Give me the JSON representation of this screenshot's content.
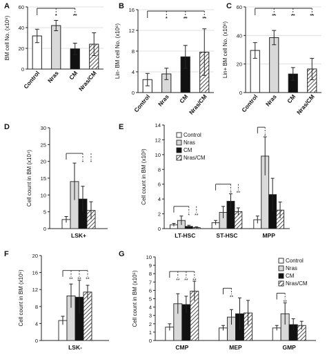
{
  "colors": {
    "control": "#ffffff",
    "nras": "#d9d9d9",
    "cm": "#111111",
    "nras_cm": "hatch",
    "stroke": "#222222",
    "grid": "#d9d9d9"
  },
  "legend": {
    "entries": [
      "Control",
      "Nras",
      "CM",
      "Nras/CM"
    ]
  },
  "chart_data": [
    {
      "panel": "A",
      "type": "bar",
      "ylabel": "BM cell No. (x10⁶)",
      "ylim": [
        0,
        60
      ],
      "yticks": [
        "0",
        "20",
        "40",
        "60"
      ],
      "grid": true,
      "categories": [
        "Control",
        "Nras",
        "CM",
        "Nras/CM"
      ],
      "values": [
        32,
        42,
        19.5,
        24
      ],
      "errors": [
        6.5,
        5,
        5.5,
        11
      ],
      "x_tick_labels_rotated": true,
      "significance": [
        {
          "pairs": "Control-Nras",
          "label": "*"
        },
        {
          "pairs": "Control-CM",
          "label": "**"
        }
      ]
    },
    {
      "panel": "B",
      "type": "bar",
      "ylabel": "Lin- BM cell No. (x10⁶)",
      "ylim": [
        0,
        16
      ],
      "yticks": [
        "0",
        "4",
        "8",
        "12",
        "16"
      ],
      "grid": true,
      "categories": [
        "Control",
        "Nras",
        "CM",
        "Nras/CM"
      ],
      "values": [
        2.5,
        3.6,
        6.9,
        7.8
      ],
      "errors": [
        1.2,
        1.1,
        2.2,
        4.5
      ],
      "x_tick_labels_rotated": true,
      "significance": [
        {
          "pairs": "Control-Nras",
          "label": "*"
        },
        {
          "pairs": "Control-CM",
          "label": "**"
        },
        {
          "pairs": "Control-Nras/CM",
          "label": "**"
        }
      ]
    },
    {
      "panel": "C",
      "type": "bar",
      "ylabel": "Lin+ BM cell No. (x10⁶)",
      "ylim": [
        0,
        60
      ],
      "yticks": [
        "0",
        "20",
        "40",
        "60"
      ],
      "grid": true,
      "categories": [
        "Control",
        "Nras",
        "CM",
        "Nras/CM"
      ],
      "values": [
        29.5,
        38.5,
        13,
        16.5
      ],
      "errors": [
        5.5,
        5,
        4.5,
        7.5
      ],
      "x_tick_labels_rotated": true,
      "significance": [
        {
          "pairs": "Control-Nras",
          "label": "**"
        },
        {
          "pairs": "Control-CM",
          "label": "**"
        },
        {
          "pairs": "Control-Nras/CM",
          "label": "**"
        }
      ]
    },
    {
      "panel": "D",
      "type": "bar",
      "ylabel": "Cell count in BM (x10⁴)",
      "ylim": [
        0,
        30
      ],
      "yticks": [
        "0",
        "5",
        "10",
        "15",
        "20",
        "25",
        "30"
      ],
      "grid": false,
      "categories": [
        "LSK+"
      ],
      "series": [
        {
          "name": "Control",
          "values": [
            2.7
          ],
          "errors": [
            0.9
          ]
        },
        {
          "name": "Nras",
          "values": [
            14.0
          ],
          "errors": [
            5.5
          ]
        },
        {
          "name": "CM",
          "values": [
            8.8
          ],
          "errors": [
            3.8
          ]
        },
        {
          "name": "Nras/CM",
          "values": [
            5.4
          ],
          "errors": [
            2.6
          ]
        }
      ],
      "significance": [
        {
          "group": "LSK+",
          "labels": [
            "*",
            "*"
          ]
        }
      ]
    },
    {
      "panel": "E",
      "type": "bar",
      "ylabel": "Cell count in BM (x10³)",
      "ylim": [
        0,
        14
      ],
      "yticks": [
        "0",
        "2",
        "4",
        "6",
        "8",
        "10",
        "12",
        "14"
      ],
      "grid": false,
      "legend": "top-left",
      "categories": [
        "LT-HSC",
        "ST-HSC",
        "MPP"
      ],
      "series": [
        {
          "name": "Control",
          "values": [
            0.5,
            0.8,
            1.2
          ],
          "errors": [
            0.2,
            0.3,
            0.5
          ]
        },
        {
          "name": "Nras",
          "values": [
            1.1,
            2.2,
            9.8
          ],
          "errors": [
            0.6,
            0.8,
            2.6
          ]
        },
        {
          "name": "CM",
          "values": [
            0.3,
            3.7,
            4.6
          ],
          "errors": [
            0.15,
            1.0,
            2.2
          ]
        },
        {
          "name": "Nras/CM",
          "values": [
            0.15,
            2.3,
            2.5
          ],
          "errors": [
            0.1,
            0.5,
            1.1
          ]
        }
      ],
      "significance": [
        {
          "group": "LT-HSC",
          "labels": [
            "*",
            "**"
          ]
        },
        {
          "group": "ST-HSC",
          "labels": [
            "*",
            "**"
          ]
        },
        {
          "group": "MPP",
          "labels": [
            "*"
          ]
        }
      ]
    },
    {
      "panel": "F",
      "type": "bar",
      "ylabel": "Cell count in BM (x10⁵)",
      "ylim": [
        0,
        20
      ],
      "yticks": [
        "0",
        "4",
        "8",
        "12",
        "16",
        "20"
      ],
      "grid": false,
      "categories": [
        "LSK-"
      ],
      "series": [
        {
          "name": "Control",
          "values": [
            4.7
          ],
          "errors": [
            1.0
          ]
        },
        {
          "name": "Nras",
          "values": [
            10.5
          ],
          "errors": [
            2.8
          ]
        },
        {
          "name": "CM",
          "values": [
            10.2
          ],
          "errors": [
            4.0
          ]
        },
        {
          "name": "Nras/CM",
          "values": [
            11.4
          ],
          "errors": [
            1.6
          ]
        }
      ],
      "significance": [
        {
          "group": "LSK-",
          "labels": [
            "**",
            "**",
            "**"
          ]
        }
      ]
    },
    {
      "panel": "G",
      "type": "bar",
      "ylabel": "Cell count in BM (x10⁵)",
      "ylim": [
        0,
        10
      ],
      "yticks": [
        "0",
        "1",
        "2",
        "3",
        "4",
        "5",
        "6",
        "7",
        "8",
        "9",
        "10"
      ],
      "grid": false,
      "legend": "top-right",
      "categories": [
        "CMP",
        "MEP",
        "GMP"
      ],
      "series": [
        {
          "name": "Control",
          "values": [
            1.6,
            1.5,
            1.5
          ],
          "errors": [
            0.4,
            0.3,
            0.3
          ]
        },
        {
          "name": "Nras",
          "values": [
            4.4,
            2.8,
            3.2
          ],
          "errors": [
            1.2,
            0.9,
            1.3
          ]
        },
        {
          "name": "CM",
          "values": [
            4.3,
            3.2,
            1.9
          ],
          "errors": [
            1.0,
            1.9,
            0.7
          ]
        },
        {
          "name": "Nras/CM",
          "values": [
            5.9,
            3.3,
            1.8
          ],
          "errors": [
            1.2,
            1.5,
            0.5
          ]
        }
      ],
      "significance": [
        {
          "group": "CMP",
          "labels": [
            "**",
            "**",
            "**"
          ]
        },
        {
          "group": "MEP",
          "labels": [
            "**"
          ]
        },
        {
          "group": "GMP",
          "labels": [
            "**"
          ]
        }
      ]
    }
  ]
}
